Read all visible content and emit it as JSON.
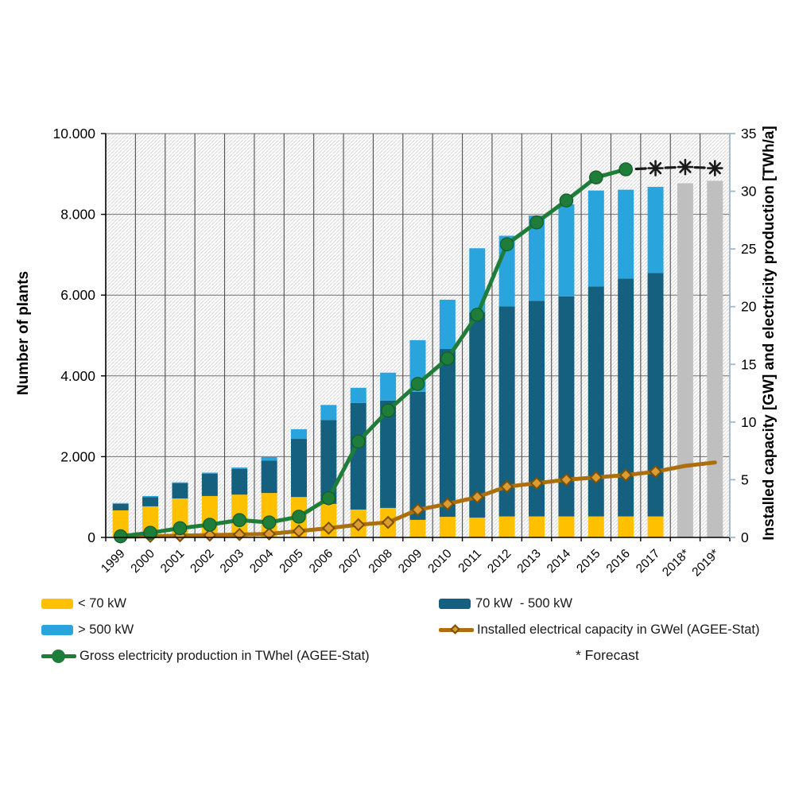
{
  "chart": {
    "left_axis": {
      "title": "Number of plants",
      "tick_labels": [
        "0",
        "2.000",
        "4.000",
        "6.000",
        "8.000",
        "10.000"
      ],
      "tick_values": [
        0,
        2000,
        4000,
        6000,
        8000,
        10000
      ],
      "max": 10000
    },
    "right_axis": {
      "title": "Installed capacity [GW] and electricity production [TWh/a]",
      "tick_labels": [
        "0",
        "5",
        "10",
        "15",
        "20",
        "25",
        "30",
        "35"
      ],
      "tick_values": [
        0,
        5,
        10,
        15,
        20,
        25,
        30,
        35
      ],
      "max": 35
    },
    "forecast_note": "* Forecast"
  },
  "chart_data": {
    "type": "bar",
    "title": "",
    "xlabel": "",
    "ylabel_left": "Number of plants",
    "ylabel_right": "Installed capacity [GW] and electricity production [TWh/a]",
    "ylim_left": [
      0,
      10000
    ],
    "ylim_right": [
      0,
      35
    ],
    "grid": "on",
    "legend_position": "bottom",
    "categories": [
      "1999",
      "2000",
      "2001",
      "2002",
      "2003",
      "2004",
      "2005",
      "2006",
      "2007",
      "2008",
      "2009",
      "2010",
      "2011",
      "2012",
      "2013",
      "2014",
      "2015",
      "2016",
      "2017",
      "2018*",
      "2019*"
    ],
    "series": [
      {
        "name": "< 70 kW",
        "role": "bar-stack",
        "color": "#ffc000",
        "values": [
          670,
          770,
          965,
          1025,
          1060,
          1100,
          1000,
          830,
          690,
          730,
          435,
          510,
          490,
          520,
          520,
          520,
          520,
          520,
          520,
          null,
          null
        ]
      },
      {
        "name": "70 kW  - 500 kW",
        "role": "bar-stack",
        "color": "#16607f",
        "values": [
          160,
          230,
          375,
          550,
          640,
          800,
          1440,
          2075,
          2640,
          2660,
          3170,
          4155,
          5080,
          5200,
          5340,
          5450,
          5690,
          5890,
          6030,
          null,
          null
        ]
      },
      {
        "name": "> 500 kW",
        "role": "bar-stack",
        "color": "#2aa4dc",
        "values": [
          20,
          25,
          25,
          30,
          30,
          90,
          240,
          375,
          375,
          690,
          1280,
          1220,
          1590,
          1750,
          2110,
          2280,
          2380,
          2200,
          2130,
          null,
          null
        ]
      },
      {
        "name": "Number of plants forecast",
        "role": "bar-forecast",
        "color": "#bfbfbf",
        "values": [
          null,
          null,
          null,
          null,
          null,
          null,
          null,
          null,
          null,
          null,
          null,
          null,
          null,
          null,
          null,
          null,
          null,
          null,
          null,
          8770,
          8830
        ]
      },
      {
        "name": "Gross electricity production in TWhel (AGEE-Stat)",
        "role": "line",
        "axis": "right",
        "marker": "circle",
        "color": "#1d7d39",
        "marker_fill": "#1d7d39",
        "values": [
          0.1,
          0.4,
          0.8,
          1.1,
          1.5,
          1.3,
          1.8,
          3.4,
          8.3,
          11.0,
          13.3,
          15.5,
          19.3,
          25.4,
          27.3,
          29.2,
          31.2,
          31.9,
          null,
          null,
          null
        ]
      },
      {
        "name": "Gross electricity production forecast",
        "role": "line-forecast",
        "axis": "right",
        "marker": "asterisk",
        "color": "#1a1a1a",
        "values": [
          null,
          null,
          null,
          null,
          null,
          null,
          null,
          null,
          null,
          null,
          null,
          null,
          null,
          null,
          null,
          null,
          null,
          31.9,
          32.0,
          32.1,
          32.0
        ]
      },
      {
        "name": "Installed electrical capacity in GWel (AGEE-Stat)",
        "role": "line",
        "axis": "right",
        "marker": "diamond",
        "color": "#ab6f0e",
        "marker_fill": "#dd9c33",
        "marker_stroke": "#7a5206",
        "markers_through_index": 18,
        "values": [
          0.05,
          0.1,
          0.15,
          0.2,
          0.25,
          0.3,
          0.55,
          0.8,
          1.1,
          1.3,
          2.4,
          2.9,
          3.5,
          4.4,
          4.7,
          5.0,
          5.2,
          5.4,
          5.7,
          6.2,
          6.5
        ]
      }
    ]
  },
  "style": {
    "hatch_color": "#dadada",
    "h_grid_color": "#707070",
    "v_grid_color": "#4f4f4f",
    "left_axis_color": "#000000",
    "right_axis_color": "#9fb9c9",
    "tick_label_color": "#000000"
  }
}
